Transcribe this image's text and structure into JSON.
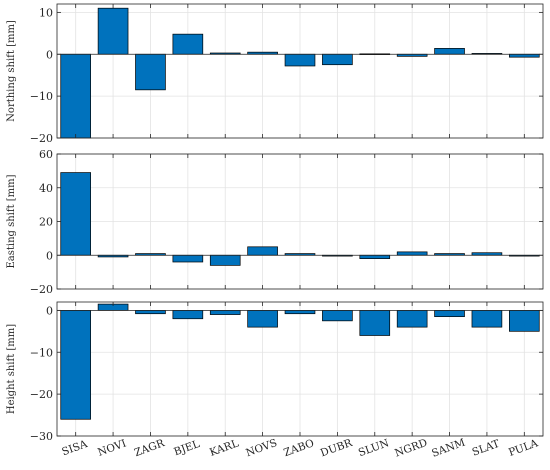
{
  "chart_data": [
    {
      "type": "bar",
      "ylabel": "Northing shift [mm]",
      "categories": [
        "SISA",
        "NOVI",
        "ZAGR",
        "BJEL",
        "KARL",
        "NOVS",
        "ZABO",
        "DUBR",
        "SLUN",
        "NGRD",
        "SANM",
        "SLAT",
        "PULA"
      ],
      "values": [
        -20,
        11,
        -8.5,
        4.8,
        0.3,
        0.5,
        -2.8,
        -2.5,
        0.1,
        -0.5,
        1.4,
        0.2,
        -0.7
      ],
      "ylim": [
        -20,
        12
      ],
      "yticks": [
        -20,
        -10,
        0,
        10
      ],
      "yticklabels": [
        "−20",
        "−10",
        "0",
        "10"
      ],
      "grid": true,
      "bar_color": "#0072BD"
    },
    {
      "type": "bar",
      "ylabel": "Easting shift [mm]",
      "categories": [
        "SISA",
        "NOVI",
        "ZAGR",
        "BJEL",
        "KARL",
        "NOVS",
        "ZABO",
        "DUBR",
        "SLUN",
        "NGRD",
        "SANM",
        "SLAT",
        "PULA"
      ],
      "values": [
        49,
        -1,
        1,
        -4,
        -6,
        5,
        1,
        -0.5,
        -2,
        2,
        1,
        1.5,
        -0.5
      ],
      "ylim": [
        -20,
        60
      ],
      "yticks": [
        -20,
        0,
        20,
        40,
        60
      ],
      "yticklabels": [
        "−20",
        "0",
        "20",
        "40",
        "60"
      ],
      "grid": true,
      "bar_color": "#0072BD"
    },
    {
      "type": "bar",
      "ylabel": "Height shift [mm]",
      "categories": [
        "SISA",
        "NOVI",
        "ZAGR",
        "BJEL",
        "KARL",
        "NOVS",
        "ZABO",
        "DUBR",
        "SLUN",
        "NGRD",
        "SANM",
        "SLAT",
        "PULA"
      ],
      "values": [
        -26,
        1.5,
        -0.8,
        -2,
        -1,
        -4,
        -0.8,
        -2.5,
        -6,
        -4,
        -1.5,
        -4,
        -5
      ],
      "ylim": [
        -30,
        2
      ],
      "yticks": [
        -30,
        -20,
        -10,
        0
      ],
      "yticklabels": [
        "−30",
        "−20",
        "−10",
        "0"
      ],
      "grid": true,
      "bar_color": "#0072BD"
    }
  ]
}
